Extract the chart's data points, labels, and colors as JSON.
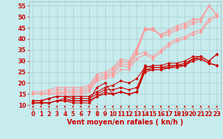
{
  "title": "",
  "xlabel": "Vent moyen/en rafales ( kn/h )",
  "background_color": "#c6ecee",
  "grid_color": "#aacccc",
  "xlim": [
    -0.5,
    23.5
  ],
  "ylim": [
    8.5,
    57
  ],
  "yticks": [
    10,
    15,
    20,
    25,
    30,
    35,
    40,
    45,
    50,
    55
  ],
  "xticks": [
    0,
    1,
    2,
    3,
    4,
    5,
    6,
    7,
    8,
    9,
    10,
    11,
    12,
    13,
    14,
    15,
    16,
    17,
    18,
    19,
    20,
    21,
    22,
    23
  ],
  "dark_lines": [
    [
      11,
      11,
      11,
      12,
      13,
      12,
      12,
      12,
      18,
      20,
      15,
      16,
      15,
      16,
      28,
      27,
      27,
      27,
      28,
      28,
      31,
      32,
      30,
      33
    ],
    [
      11,
      11,
      11,
      12,
      12,
      11,
      11,
      11,
      14,
      16,
      15,
      16,
      15,
      16,
      25,
      26,
      26,
      27,
      28,
      28,
      31,
      31,
      29,
      28
    ],
    [
      11,
      11,
      11,
      12,
      12,
      12,
      12,
      12,
      14,
      15,
      15,
      16,
      15,
      16,
      26,
      26,
      26,
      27,
      27,
      28,
      30,
      31,
      29,
      28
    ],
    [
      12,
      12,
      13,
      14,
      14,
      14,
      14,
      14,
      16,
      18,
      19,
      21,
      20,
      22,
      27,
      28,
      28,
      29,
      29,
      30,
      32,
      32,
      30,
      33
    ],
    [
      12,
      12,
      13,
      14,
      14,
      13,
      13,
      13,
      15,
      17,
      17,
      18,
      17,
      18,
      26,
      27,
      27,
      28,
      28,
      29,
      31,
      31,
      29,
      28
    ]
  ],
  "light_lines": [
    [
      15,
      15,
      15,
      15,
      16,
      16,
      16,
      17,
      22,
      23,
      24,
      28,
      27,
      33,
      34,
      32,
      35,
      38,
      40,
      41,
      43,
      44,
      49,
      51
    ],
    [
      15,
      15,
      15,
      15,
      15,
      15,
      15,
      16,
      21,
      22,
      23,
      26,
      26,
      31,
      33,
      31,
      34,
      37,
      39,
      40,
      42,
      43,
      48,
      50
    ],
    [
      15,
      15,
      15,
      16,
      16,
      16,
      16,
      17,
      22,
      23,
      25,
      29,
      28,
      34,
      44,
      45,
      41,
      42,
      44,
      45,
      47,
      48,
      55,
      51
    ],
    [
      15,
      15,
      16,
      17,
      17,
      17,
      17,
      18,
      23,
      24,
      26,
      30,
      29,
      35,
      44,
      44,
      42,
      43,
      45,
      46,
      48,
      49,
      55,
      51
    ],
    [
      16,
      16,
      17,
      18,
      18,
      18,
      18,
      19,
      24,
      25,
      27,
      31,
      30,
      36,
      45,
      44,
      42,
      44,
      46,
      47,
      49,
      49,
      55,
      51
    ]
  ],
  "dark_color": "#cc0000",
  "light_color": "#ff9999",
  "xlabel_color": "#cc0000",
  "xlabel_fontsize": 7,
  "tick_fontsize": 6,
  "tick_color": "#cc0000",
  "lw_dark": 0.8,
  "lw_light": 0.8
}
